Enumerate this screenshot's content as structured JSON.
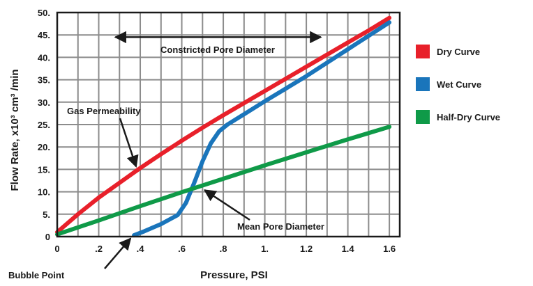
{
  "chart_data": {
    "type": "line",
    "xlabel": "Pressure, PSI",
    "ylabel": "Flow Rate, x10³ cm³ /min",
    "xlim": [
      0,
      1.65
    ],
    "ylim": [
      0,
      50
    ],
    "x_ticks": [
      {
        "value": 0,
        "label": "0"
      },
      {
        "value": 0.2,
        "label": ".2"
      },
      {
        "value": 0.4,
        "label": ".4"
      },
      {
        "value": 0.6,
        "label": ".6"
      },
      {
        "value": 0.8,
        "label": ".8"
      },
      {
        "value": 1.0,
        "label": "1."
      },
      {
        "value": 1.2,
        "label": "1.2"
      },
      {
        "value": 1.4,
        "label": "1.4"
      },
      {
        "value": 1.6,
        "label": "1.6"
      }
    ],
    "y_ticks": [
      {
        "value": 0,
        "label": "0"
      },
      {
        "value": 5,
        "label": "5."
      },
      {
        "value": 10,
        "label": "10."
      },
      {
        "value": 15,
        "label": "15."
      },
      {
        "value": 20,
        "label": "20."
      },
      {
        "value": 25,
        "label": "25."
      },
      {
        "value": 30,
        "label": "30."
      },
      {
        "value": 35,
        "label": "35."
      },
      {
        "value": 40,
        "label": "40."
      },
      {
        "value": 45,
        "label": "45."
      },
      {
        "value": 50,
        "label": "50."
      }
    ],
    "grid": true,
    "legend_position": "right",
    "series": [
      {
        "name": "Dry Curve",
        "color": "#e8202a",
        "x": [
          0,
          0.1,
          0.2,
          0.3,
          0.4,
          0.5,
          0.6,
          0.7,
          0.8,
          0.9,
          1.0,
          1.1,
          1.2,
          1.3,
          1.4,
          1.5,
          1.6
        ],
        "y": [
          1,
          5,
          8.7,
          12,
          15.3,
          18.4,
          21.4,
          24.3,
          27.1,
          29.8,
          32.5,
          35.2,
          37.9,
          40.6,
          43.3,
          46,
          48.8
        ]
      },
      {
        "name": "Wet Curve",
        "color": "#1a75bb",
        "x": [
          0.37,
          0.42,
          0.5,
          0.58,
          0.62,
          0.66,
          0.7,
          0.74,
          0.78,
          0.82,
          0.9,
          1.0,
          1.1,
          1.2,
          1.3,
          1.4,
          1.5,
          1.6
        ],
        "y": [
          0.3,
          1.2,
          2.8,
          4.8,
          7.5,
          12,
          16.8,
          20.8,
          23.5,
          25,
          27.3,
          30.2,
          33,
          35.8,
          38.8,
          41.8,
          44.8,
          47.8
        ]
      },
      {
        "name": "Half-Dry Curve",
        "color": "#0f9a48",
        "x": [
          0,
          0.2,
          0.4,
          0.6,
          0.8,
          1.0,
          1.2,
          1.4,
          1.6
        ],
        "y": [
          0.5,
          3.6,
          6.8,
          9.9,
          12.9,
          15.9,
          18.8,
          21.7,
          24.5
        ]
      }
    ],
    "annotations": [
      {
        "text": "Constricted Pore Diameter",
        "x": 0.6,
        "y": 42,
        "arrow": "double",
        "from_x": 0.28,
        "to_x": 1.27,
        "arrow_y": 44.5
      },
      {
        "text": "Gas Permeability",
        "x": 0.05,
        "y": 27.5,
        "arrow_to": [
          0.37,
          15
        ]
      },
      {
        "text": "Mean Pore Diameter",
        "x": 0.85,
        "y": 2,
        "arrow_to": [
          0.69,
          11
        ]
      },
      {
        "text": "Bubble Point",
        "x": -0.25,
        "y": -8,
        "arrow_to": [
          0.36,
          0.2
        ]
      }
    ]
  }
}
